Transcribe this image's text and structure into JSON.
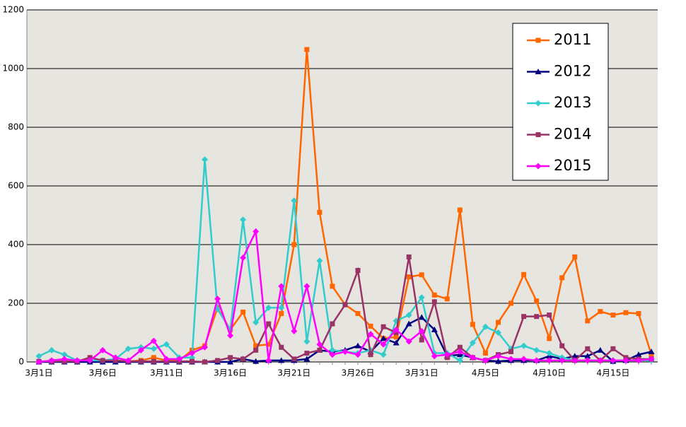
{
  "chart_data": {
    "type": "line",
    "categories": [
      "3月1日",
      null,
      null,
      null,
      null,
      "3月6日",
      null,
      null,
      null,
      null,
      "3月11日",
      null,
      null,
      null,
      null,
      "3月16日",
      null,
      null,
      null,
      null,
      "3月21日",
      null,
      null,
      null,
      null,
      "3月26日",
      null,
      null,
      null,
      null,
      "3月31日",
      null,
      null,
      null,
      null,
      "4月5日",
      null,
      null,
      null,
      null,
      "4月10日",
      null,
      null,
      null,
      null,
      "4月15日",
      null,
      null,
      null
    ],
    "ylim": [
      0,
      1200
    ],
    "yticks": [
      0,
      200,
      400,
      600,
      800,
      1000,
      1200
    ],
    "grid": true,
    "legend": "upper right",
    "series": [
      {
        "name": "2011",
        "color": "#ff6600",
        "marker": "square",
        "values": [
          0,
          2,
          2,
          2,
          2,
          2,
          5,
          2,
          5,
          15,
          5,
          5,
          40,
          55,
          185,
          110,
          170,
          55,
          60,
          165,
          400,
          1065,
          510,
          258,
          195,
          165,
          122,
          80,
          85,
          290,
          297,
          228,
          215,
          518,
          128,
          30,
          135,
          200,
          298,
          208,
          80,
          287,
          358,
          140,
          172,
          160,
          168,
          165,
          25
        ]
      },
      {
        "name": "2012",
        "color": "#000080",
        "marker": "triangle",
        "values": [
          0,
          0,
          0,
          0,
          0,
          0,
          0,
          0,
          0,
          0,
          0,
          0,
          0,
          0,
          0,
          0,
          10,
          2,
          5,
          5,
          5,
          10,
          40,
          35,
          40,
          55,
          35,
          80,
          65,
          130,
          152,
          110,
          20,
          25,
          15,
          5,
          2,
          5,
          5,
          5,
          20,
          10,
          20,
          20,
          40,
          2,
          5,
          25,
          35
        ]
      },
      {
        "name": "2013",
        "color": "#33cccc",
        "marker": "diamond",
        "values": [
          20,
          40,
          25,
          5,
          5,
          5,
          10,
          45,
          50,
          45,
          60,
          15,
          15,
          690,
          180,
          110,
          485,
          135,
          185,
          185,
          550,
          70,
          345,
          40,
          35,
          30,
          40,
          25,
          140,
          160,
          220,
          30,
          30,
          5,
          65,
          120,
          100,
          45,
          55,
          40,
          30,
          15,
          5,
          5,
          5,
          5,
          5,
          5,
          5
        ]
      },
      {
        "name": "2014",
        "color": "#993366",
        "marker": "square",
        "values": [
          2,
          2,
          2,
          2,
          15,
          5,
          5,
          2,
          2,
          2,
          2,
          2,
          2,
          0,
          5,
          15,
          10,
          40,
          130,
          50,
          10,
          30,
          40,
          130,
          195,
          312,
          25,
          120,
          100,
          358,
          75,
          205,
          15,
          50,
          15,
          5,
          25,
          35,
          155,
          155,
          160,
          55,
          5,
          45,
          5,
          45,
          15,
          10,
          10
        ]
      },
      {
        "name": "2015",
        "color": "#ff00ff",
        "marker": "diamond",
        "values": [
          0,
          5,
          10,
          5,
          5,
          40,
          15,
          5,
          40,
          72,
          10,
          10,
          30,
          50,
          215,
          90,
          355,
          445,
          5,
          258,
          105,
          258,
          60,
          25,
          35,
          25,
          95,
          60,
          110,
          70,
          105,
          20,
          25,
          35,
          15,
          5,
          20,
          10,
          10,
          5,
          5,
          5,
          5,
          5,
          5,
          5,
          5,
          5,
          10
        ]
      }
    ]
  }
}
